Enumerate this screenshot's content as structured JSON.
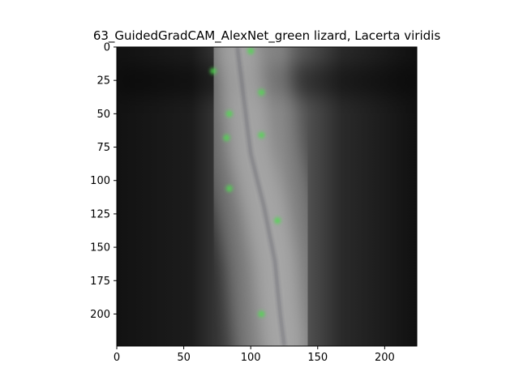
{
  "chart_data": {
    "type": "heatmap",
    "title": "63_GuidedGradCAM_AlexNet_green lizard, Lacerta viridis",
    "xlabel": "",
    "ylabel": "",
    "xlim": [
      0,
      224
    ],
    "ylim": [
      224,
      0
    ],
    "x_ticks": [
      0,
      50,
      100,
      150,
      200
    ],
    "y_ticks": [
      0,
      25,
      50,
      75,
      100,
      125,
      150,
      175,
      200
    ],
    "image_size": [
      224,
      224
    ],
    "grid": false,
    "colors": {
      "background": "#0d0d0d",
      "bright_band": "#b4b4b4",
      "green_dots": "#4fd94f"
    },
    "bright_band_centerline": [
      {
        "x": 90,
        "y": 0
      },
      {
        "x": 95,
        "y": 40
      },
      {
        "x": 100,
        "y": 80
      },
      {
        "x": 110,
        "y": 120
      },
      {
        "x": 118,
        "y": 160
      },
      {
        "x": 122,
        "y": 200
      },
      {
        "x": 125,
        "y": 224
      }
    ],
    "green_dots": [
      {
        "x": 100,
        "y": 3
      },
      {
        "x": 72,
        "y": 18
      },
      {
        "x": 108,
        "y": 34
      },
      {
        "x": 84,
        "y": 50
      },
      {
        "x": 108,
        "y": 66
      },
      {
        "x": 82,
        "y": 68
      },
      {
        "x": 84,
        "y": 106
      },
      {
        "x": 120,
        "y": 130
      },
      {
        "x": 108,
        "y": 200
      }
    ]
  }
}
